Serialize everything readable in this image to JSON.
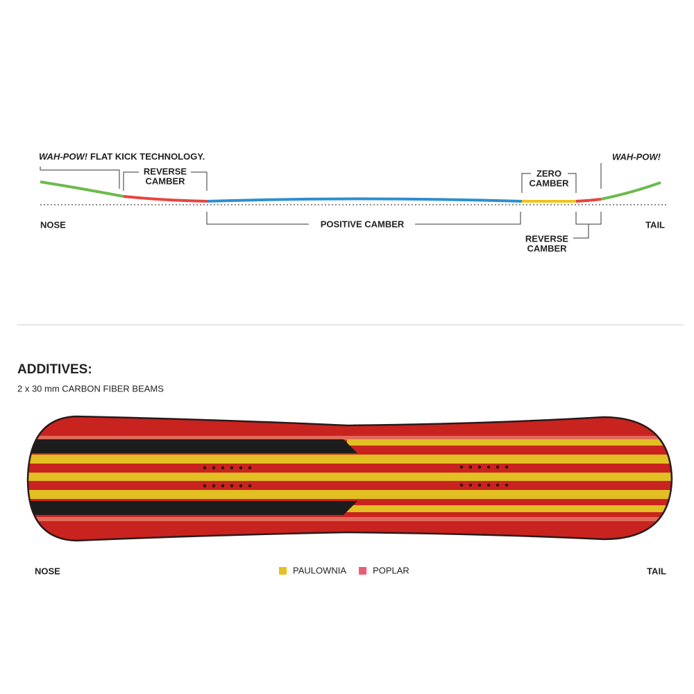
{
  "profile": {
    "flat_kick_left": {
      "emphasis": "WAH-POW!",
      "text": "FLAT KICK TECHNOLOGY."
    },
    "reverse_camber_left": [
      "REVERSE",
      "CAMBER"
    ],
    "zero_camber": [
      "ZERO",
      "CAMBER"
    ],
    "flat_kick_right": "WAH-POW!",
    "nose": "NOSE",
    "tail": "TAIL",
    "positive_camber": "POSITIVE CAMBER",
    "reverse_camber_right": [
      "REVERSE",
      "CAMBER"
    ]
  },
  "additives": {
    "title": "ADDITIVES:",
    "text": "2 x 30 mm CARBON FIBER BEAMS"
  },
  "board": {
    "nose": "NOSE",
    "tail": "TAIL",
    "legend": [
      {
        "label": "PAULOWNIA",
        "color": "#e5c11f"
      },
      {
        "label": "POPLAR",
        "color": "#ef5a73"
      }
    ]
  }
}
